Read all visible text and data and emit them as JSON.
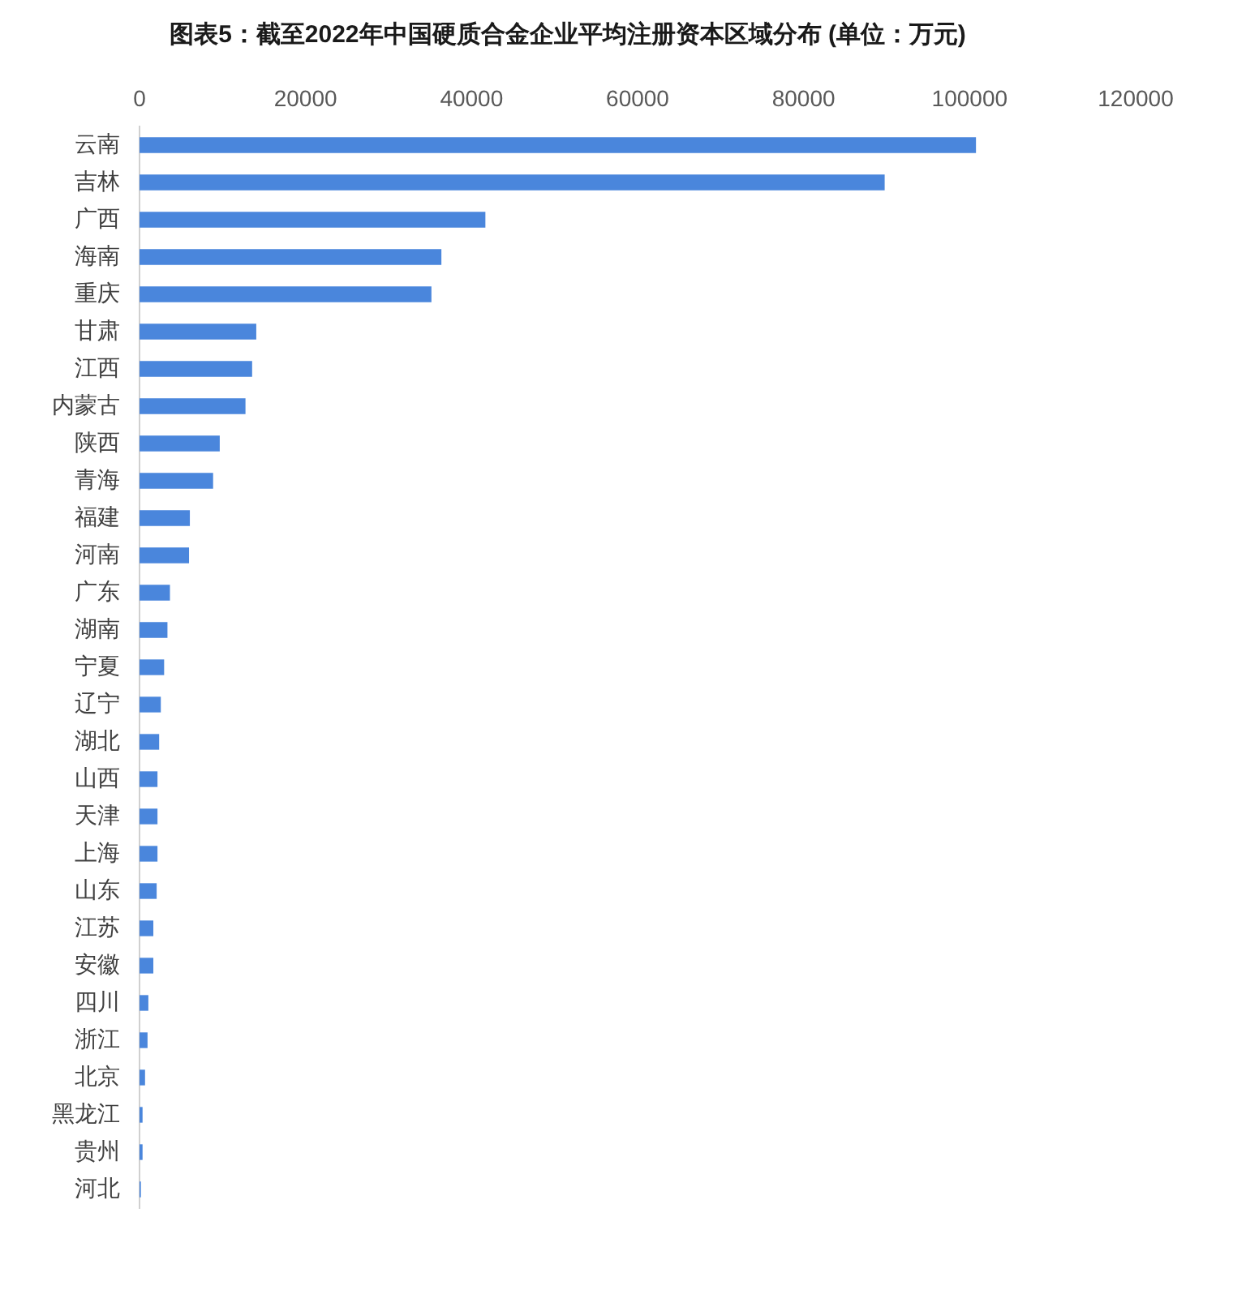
{
  "chart_data": {
    "type": "bar",
    "orientation": "horizontal",
    "title": "图表5：截至2022年中国硬质合金企业平均注册资本区域分布 (单位：万元)",
    "categories": [
      "云南",
      "吉林",
      "广西",
      "海南",
      "重庆",
      "甘肃",
      "江西",
      "内蒙古",
      "陕西",
      "青海",
      "福建",
      "河南",
      "广东",
      "湖南",
      "宁夏",
      "辽宁",
      "湖北",
      "山西",
      "天津",
      "上海",
      "山东",
      "江苏",
      "安徽",
      "四川",
      "浙江",
      "北京",
      "黑龙江",
      "贵州",
      "河北"
    ],
    "values": [
      100700,
      89700,
      41600,
      36300,
      35100,
      14000,
      13500,
      12700,
      9600,
      8800,
      6000,
      5900,
      3600,
      3300,
      2900,
      2500,
      2300,
      2100,
      2100,
      2100,
      2000,
      1600,
      1600,
      1000,
      900,
      600,
      300,
      300,
      100
    ],
    "color": "#4a86dc",
    "xlim": [
      0,
      120000
    ],
    "xticks": [
      0,
      20000,
      40000,
      60000,
      80000,
      100000,
      120000
    ]
  }
}
